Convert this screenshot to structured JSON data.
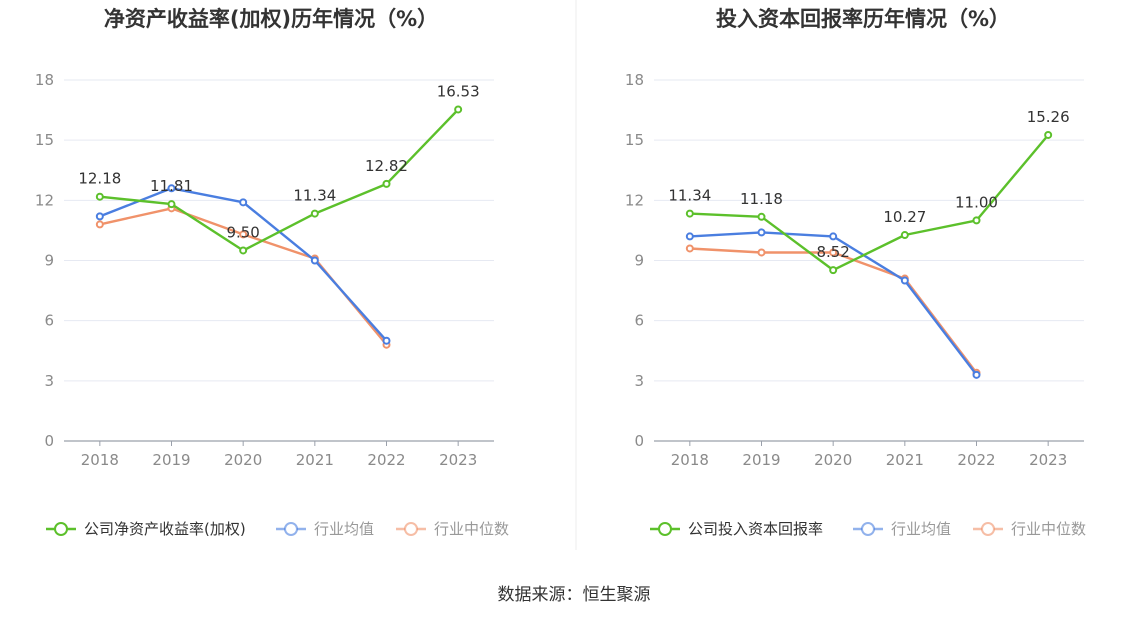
{
  "chart_data": [
    {
      "type": "line",
      "title": "净资产收益率(加权)历年情况（%）",
      "categories": [
        "2018",
        "2019",
        "2020",
        "2021",
        "2022",
        "2023"
      ],
      "ylim": [
        0,
        18
      ],
      "yticks": [
        0,
        3,
        6,
        9,
        12,
        15,
        18
      ],
      "grid": true,
      "legend_position": "bottom",
      "series": [
        {
          "name": "公司净资产收益率(加权)",
          "color": "#5cc02b",
          "values": [
            12.18,
            11.81,
            9.5,
            11.34,
            12.82,
            16.53
          ],
          "labels": [
            "12.18",
            "11.81",
            "9.50",
            "11.34",
            "12.82",
            "16.53"
          ]
        },
        {
          "name": "行业均值",
          "color": "#4a7ee0",
          "values": [
            11.2,
            12.6,
            11.9,
            9.0,
            5.0,
            null
          ]
        },
        {
          "name": "行业中位数",
          "color": "#f0926a",
          "values": [
            10.8,
            11.6,
            10.3,
            9.1,
            4.8,
            null
          ]
        }
      ]
    },
    {
      "type": "line",
      "title": "投入资本回报率历年情况（%）",
      "categories": [
        "2018",
        "2019",
        "2020",
        "2021",
        "2022",
        "2023"
      ],
      "ylim": [
        0,
        18
      ],
      "yticks": [
        0,
        3,
        6,
        9,
        12,
        15,
        18
      ],
      "grid": true,
      "legend_position": "bottom",
      "series": [
        {
          "name": "公司投入资本回报率",
          "color": "#5cc02b",
          "values": [
            11.34,
            11.18,
            8.52,
            10.27,
            11.0,
            15.26
          ],
          "labels": [
            "11.34",
            "11.18",
            "8.52",
            "10.27",
            "11.00",
            "15.26"
          ]
        },
        {
          "name": "行业均值",
          "color": "#4a7ee0",
          "values": [
            10.2,
            10.4,
            10.2,
            8.0,
            3.3,
            null
          ]
        },
        {
          "name": "行业中位数",
          "color": "#f0926a",
          "values": [
            9.6,
            9.4,
            9.4,
            8.1,
            3.4,
            null
          ]
        }
      ]
    }
  ],
  "source_text": "数据来源：恒生聚源"
}
